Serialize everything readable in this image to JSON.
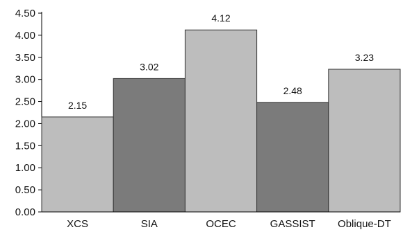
{
  "chart_data": {
    "type": "bar",
    "categories": [
      "XCS",
      "SIA",
      "OCEC",
      "GASSIST",
      "Oblique-DT"
    ],
    "values": [
      2.15,
      3.02,
      4.12,
      2.48,
      3.23
    ],
    "value_labels": [
      "2.15",
      "3.02",
      "4.12",
      "2.48",
      "3.23"
    ],
    "ylim": [
      0,
      4.5
    ],
    "yticks": [
      "0.00",
      "0.50",
      "1.00",
      "1.50",
      "2.00",
      "2.50",
      "3.00",
      "3.50",
      "4.00",
      "4.50"
    ],
    "grid": false,
    "legend": "none",
    "colors": {
      "light_bar": "#bdbdbd",
      "dark_bar": "#7b7b7b",
      "outline": "#333333",
      "axis": "#000000"
    },
    "bar_shades": [
      "light",
      "dark",
      "light",
      "dark",
      "light"
    ]
  }
}
